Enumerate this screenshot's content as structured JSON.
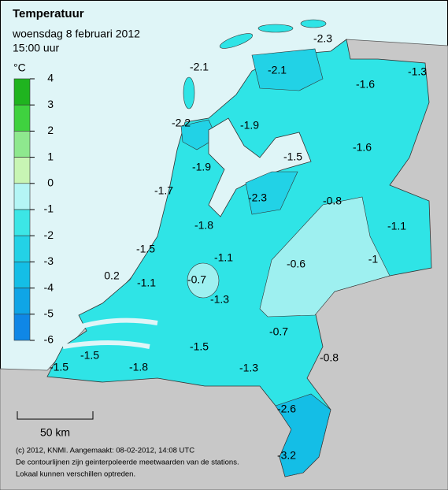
{
  "header": {
    "title": "Temperatuur",
    "date": "woensdag 8 februari 2012",
    "time": "15:00 uur"
  },
  "legend": {
    "unit": "°C",
    "ticks": [
      4,
      3,
      2,
      1,
      0,
      -1,
      -2,
      -3,
      -4,
      -5,
      -6
    ],
    "colors": [
      "#1fb41f",
      "#3fd23f",
      "#8ee88e",
      "#c8f5b4",
      "#b4f5f5",
      "#3ce6e6",
      "#23d2e6",
      "#14bee6",
      "#0fa5e6",
      "#0f87e6"
    ]
  },
  "stations": [
    -2.3,
    -2.1,
    -1.3,
    -2.1,
    -1.6,
    -2.2,
    -1.9,
    -1.5,
    -1.6,
    -1.9,
    -1.7,
    -2.3,
    -0.8,
    -1.1,
    -1.8,
    -1.5,
    -1.1,
    -0.6,
    -1.0,
    0.2,
    -1.1,
    -0.7,
    -1.3,
    -0.7,
    -1.5,
    -1.5,
    -0.8,
    -1.3,
    -1.5,
    -1.8,
    -2.6,
    -3.2
  ],
  "scale_bar": "50 km",
  "credits": [
    "(c) 2012, KNMI. Aangemaakt: 08-02-2012, 14:08 UTC",
    "De contourlijnen zijn geinterpoleerde meetwaarden van de stations.",
    "Lokaal kunnen verschillen optreden."
  ]
}
